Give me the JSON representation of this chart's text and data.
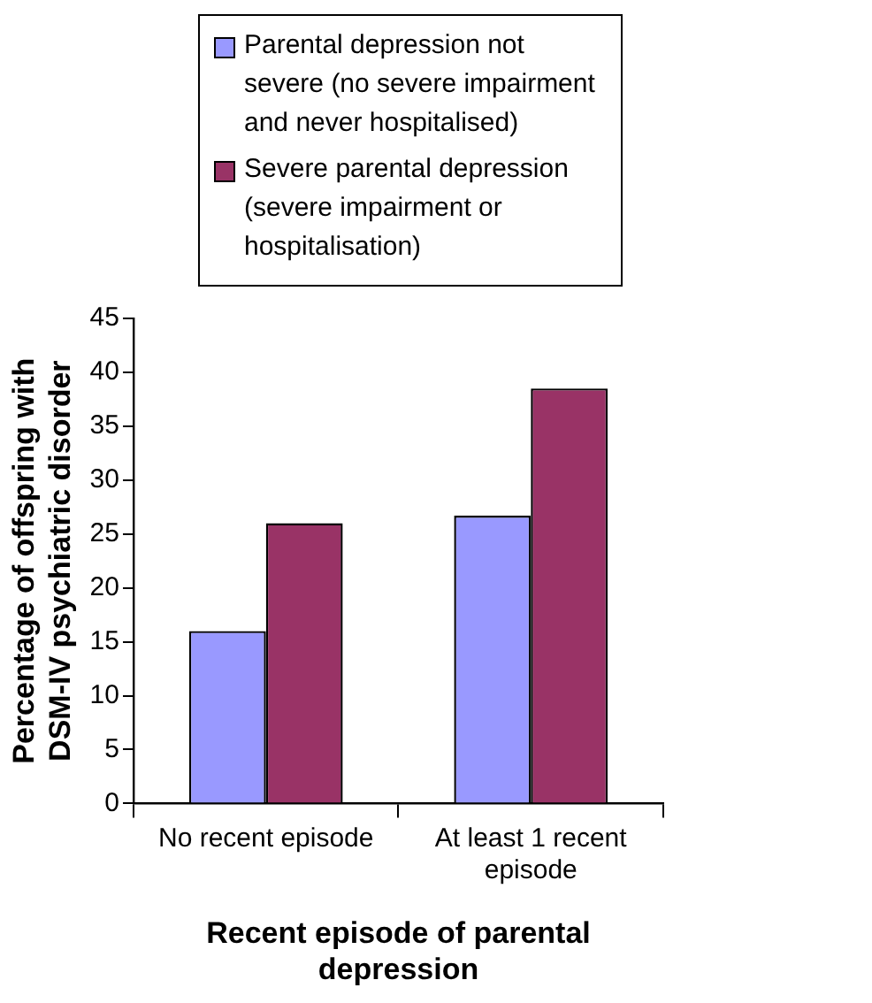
{
  "chart_data": {
    "type": "bar",
    "xlabel": "Recent episode of parental depression",
    "ylabel": "Percentage of offspring with DSM-IV psychiatric disorder",
    "categories": [
      "No recent episode",
      "At least 1 recent episode"
    ],
    "series": [
      {
        "name": "Parental depression not severe (no severe impairment and never hospitalised)",
        "color": "#9999ff",
        "values": [
          16,
          26.7
        ]
      },
      {
        "name": "Severe parental depression (severe impairment or hospitalisation)",
        "color": "#993366",
        "values": [
          26,
          38.5
        ]
      }
    ],
    "ylim": [
      0,
      45
    ],
    "yticks": [
      0,
      5,
      10,
      15,
      20,
      25,
      30,
      35,
      40,
      45
    ],
    "grid": false,
    "legend": "top"
  }
}
